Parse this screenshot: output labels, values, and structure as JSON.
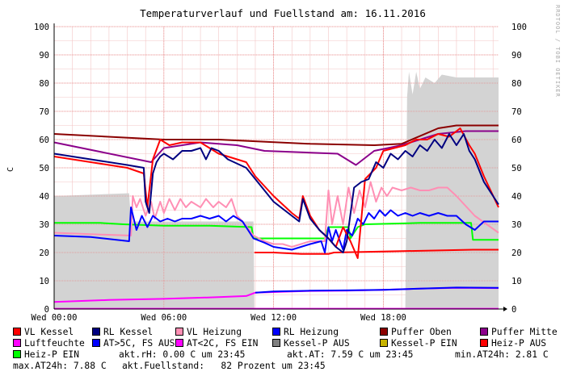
{
  "chart_data": {
    "type": "line",
    "title": "Temperaturverlauf und Fuellstand am: 16.11.2016",
    "ylabel": "C",
    "xlabel": "",
    "ylim": [
      0,
      100
    ],
    "yticks": [
      0,
      10,
      20,
      30,
      40,
      50,
      60,
      70,
      80,
      90,
      100
    ],
    "xlim": [
      0,
      24.3
    ],
    "xticks": [
      {
        "label": "Wed 00:00",
        "value": 0
      },
      {
        "label": "Wed 06:00",
        "value": 6
      },
      {
        "label": "Wed 12:00",
        "value": 12
      },
      {
        "label": "Wed 18:00",
        "value": 18
      }
    ],
    "grid": true,
    "legend_position": "bottom",
    "watermark": "RRDTOOL / TOBI OETIKER",
    "series": [
      {
        "name": "Fuellstand",
        "color": "#d3d3d3",
        "style": "area",
        "points": [
          [
            0,
            40
          ],
          [
            4.1,
            41
          ],
          [
            4.2,
            31
          ],
          [
            10.9,
            31
          ],
          [
            10.95,
            0
          ],
          [
            19.2,
            0
          ],
          [
            19.3,
            75
          ],
          [
            19.4,
            84
          ],
          [
            19.6,
            76
          ],
          [
            19.8,
            84
          ],
          [
            20,
            78
          ],
          [
            20.3,
            82
          ],
          [
            20.8,
            80
          ],
          [
            21.2,
            83
          ],
          [
            22,
            82
          ],
          [
            23,
            82
          ],
          [
            24.3,
            82
          ]
        ]
      },
      {
        "name": "Luftfeuchte",
        "color": "#ff00ff",
        "points": [
          [
            0,
            0.1
          ],
          [
            24.3,
            0.1
          ]
        ]
      },
      {
        "name": "AT<2C, FS EIN",
        "color": "#ff00ff",
        "points": [
          [
            0,
            2.5
          ],
          [
            3,
            3.2
          ],
          [
            6,
            3.6
          ],
          [
            9,
            4.2
          ],
          [
            10.5,
            4.6
          ],
          [
            11,
            5.8
          ],
          [
            12,
            6
          ],
          [
            14,
            6.4
          ],
          [
            16,
            6.5
          ],
          [
            18,
            6.8
          ],
          [
            20,
            7.2
          ],
          [
            22,
            7.5
          ],
          [
            24.3,
            7.4
          ]
        ]
      },
      {
        "name": "AT>5C, FS AUS",
        "color": "#0000ff",
        "points": [
          [
            11,
            5.8
          ],
          [
            12,
            6.2
          ],
          [
            14,
            6.5
          ],
          [
            16,
            6.6
          ],
          [
            18,
            6.8
          ],
          [
            20,
            7.2
          ],
          [
            22,
            7.6
          ],
          [
            24.3,
            7.5
          ]
        ]
      },
      {
        "name": "Puffer Oben",
        "color": "#8b0000",
        "points": [
          [
            0,
            62
          ],
          [
            6,
            60
          ],
          [
            9,
            60
          ],
          [
            14,
            58.5
          ],
          [
            17.5,
            58
          ],
          [
            19,
            58.5
          ],
          [
            21,
            64
          ],
          [
            22,
            65
          ],
          [
            24.3,
            65
          ]
        ]
      },
      {
        "name": "Puffer Mitte",
        "color": "#8b008b",
        "points": [
          [
            0,
            59
          ],
          [
            5.3,
            52
          ],
          [
            6,
            57
          ],
          [
            8,
            59
          ],
          [
            10,
            58
          ],
          [
            11.5,
            56
          ],
          [
            15.5,
            55
          ],
          [
            16.5,
            51
          ],
          [
            17.5,
            56
          ],
          [
            19,
            58
          ],
          [
            21,
            62
          ],
          [
            22.5,
            63
          ],
          [
            24.3,
            63
          ]
        ]
      },
      {
        "name": "Heiz-P EIN",
        "color": "#00ff00",
        "points": [
          [
            0,
            30.5
          ],
          [
            2.5,
            30.5
          ],
          [
            3.8,
            30
          ],
          [
            6,
            29.5
          ],
          [
            8.5,
            29.5
          ],
          [
            10.8,
            29
          ],
          [
            10.9,
            25
          ],
          [
            14.8,
            25
          ],
          [
            15,
            29
          ],
          [
            16.1,
            29
          ],
          [
            16.2,
            25
          ],
          [
            16.6,
            29
          ],
          [
            17,
            30
          ],
          [
            20,
            30.5
          ],
          [
            22.8,
            30.5
          ],
          [
            22.9,
            24.5
          ],
          [
            24.3,
            24.5
          ]
        ]
      },
      {
        "name": "Heiz-P AUS",
        "color": "#ff0000",
        "points": [
          [
            10.95,
            20
          ],
          [
            12,
            20
          ],
          [
            13.5,
            19.5
          ],
          [
            15,
            19.5
          ],
          [
            15.3,
            20
          ],
          [
            22.9,
            21
          ],
          [
            24.3,
            21
          ]
        ]
      },
      {
        "name": "VL Heizung",
        "color": "#ff8fb4",
        "points": [
          [
            0,
            27
          ],
          [
            2,
            26.5
          ],
          [
            4.2,
            26
          ],
          [
            4.3,
            40
          ],
          [
            4.5,
            36
          ],
          [
            4.7,
            39
          ],
          [
            5,
            33
          ],
          [
            5.3,
            38
          ],
          [
            5.5,
            32
          ],
          [
            5.8,
            38
          ],
          [
            6,
            34
          ],
          [
            6.3,
            39
          ],
          [
            6.6,
            35
          ],
          [
            6.9,
            39
          ],
          [
            7.2,
            36
          ],
          [
            7.5,
            38
          ],
          [
            8,
            36
          ],
          [
            8.3,
            39
          ],
          [
            8.7,
            36
          ],
          [
            9,
            38
          ],
          [
            9.4,
            36
          ],
          [
            9.7,
            39
          ],
          [
            10,
            33
          ],
          [
            10.3,
            31
          ],
          [
            10.9,
            26
          ],
          [
            11.5,
            24
          ],
          [
            12,
            23
          ],
          [
            12.5,
            23
          ],
          [
            13,
            22
          ],
          [
            14,
            24
          ],
          [
            14.8,
            24
          ],
          [
            15,
            42
          ],
          [
            15.2,
            30
          ],
          [
            15.5,
            40
          ],
          [
            15.8,
            30
          ],
          [
            16.1,
            43
          ],
          [
            16.4,
            34
          ],
          [
            16.7,
            42
          ],
          [
            17,
            36
          ],
          [
            17.3,
            45
          ],
          [
            17.6,
            38
          ],
          [
            17.9,
            43
          ],
          [
            18.2,
            40
          ],
          [
            18.5,
            43
          ],
          [
            19,
            42
          ],
          [
            19.5,
            43
          ],
          [
            20,
            42
          ],
          [
            20.5,
            42
          ],
          [
            21,
            43
          ],
          [
            21.5,
            43
          ],
          [
            22,
            40
          ],
          [
            23,
            33
          ],
          [
            24.3,
            27
          ]
        ]
      },
      {
        "name": "RL Heizung",
        "color": "#0000ff",
        "points": [
          [
            0,
            26
          ],
          [
            2,
            25.5
          ],
          [
            4.1,
            24
          ],
          [
            4.2,
            36
          ],
          [
            4.5,
            28
          ],
          [
            4.8,
            33
          ],
          [
            5.1,
            29
          ],
          [
            5.4,
            33
          ],
          [
            5.8,
            31
          ],
          [
            6.2,
            32
          ],
          [
            6.6,
            31
          ],
          [
            7,
            32
          ],
          [
            7.5,
            32
          ],
          [
            8,
            33
          ],
          [
            8.5,
            32
          ],
          [
            9,
            33
          ],
          [
            9.4,
            31
          ],
          [
            9.8,
            33
          ],
          [
            10.3,
            31
          ],
          [
            10.9,
            25
          ],
          [
            11.5,
            23.5
          ],
          [
            12,
            22
          ],
          [
            13,
            21
          ],
          [
            14,
            23
          ],
          [
            14.6,
            24
          ],
          [
            14.8,
            20
          ],
          [
            15,
            29
          ],
          [
            15.2,
            24
          ],
          [
            15.4,
            28
          ],
          [
            15.8,
            21
          ],
          [
            16,
            28
          ],
          [
            16.3,
            26
          ],
          [
            16.6,
            32
          ],
          [
            16.9,
            30
          ],
          [
            17.2,
            34
          ],
          [
            17.5,
            32
          ],
          [
            17.8,
            35
          ],
          [
            18.1,
            33
          ],
          [
            18.4,
            35
          ],
          [
            18.8,
            33
          ],
          [
            19.2,
            34
          ],
          [
            19.6,
            33
          ],
          [
            20,
            34
          ],
          [
            20.5,
            33
          ],
          [
            21,
            34
          ],
          [
            21.5,
            33
          ],
          [
            22,
            33
          ],
          [
            22.5,
            30
          ],
          [
            23,
            28
          ],
          [
            23.5,
            31
          ],
          [
            24.3,
            31
          ]
        ]
      },
      {
        "name": "VL Kessel",
        "color": "#ff0000",
        "points": [
          [
            0,
            54
          ],
          [
            2,
            52
          ],
          [
            4,
            50
          ],
          [
            4.9,
            48
          ],
          [
            5.1,
            36
          ],
          [
            5.4,
            53
          ],
          [
            5.8,
            60
          ],
          [
            6.3,
            58
          ],
          [
            7,
            59
          ],
          [
            8,
            59
          ],
          [
            8.5,
            57
          ],
          [
            9,
            55
          ],
          [
            10.5,
            52
          ],
          [
            11,
            47
          ],
          [
            12,
            40
          ],
          [
            13,
            34
          ],
          [
            13.4,
            32
          ],
          [
            13.6,
            40
          ],
          [
            14,
            33
          ],
          [
            14.5,
            28
          ],
          [
            15,
            25
          ],
          [
            15.4,
            22
          ],
          [
            15.8,
            29
          ],
          [
            16.2,
            24
          ],
          [
            16.6,
            18
          ],
          [
            17,
            46
          ],
          [
            17.6,
            50
          ],
          [
            18,
            56
          ],
          [
            18.6,
            57
          ],
          [
            19.2,
            58
          ],
          [
            19.8,
            60
          ],
          [
            20.4,
            60
          ],
          [
            21,
            62
          ],
          [
            21.6,
            61
          ],
          [
            22.2,
            64
          ],
          [
            22.7,
            58
          ],
          [
            23,
            55
          ],
          [
            23.5,
            47
          ],
          [
            24.3,
            36
          ]
        ]
      },
      {
        "name": "RL Kessel",
        "color": "#000080",
        "points": [
          [
            0,
            55
          ],
          [
            2,
            53
          ],
          [
            4,
            51
          ],
          [
            4.9,
            50
          ],
          [
            5,
            38
          ],
          [
            5.2,
            34
          ],
          [
            5.4,
            48
          ],
          [
            5.6,
            52
          ],
          [
            5.8,
            54
          ],
          [
            6,
            55
          ],
          [
            6.5,
            53
          ],
          [
            7,
            56
          ],
          [
            7.5,
            56
          ],
          [
            8,
            57
          ],
          [
            8.3,
            53
          ],
          [
            8.6,
            57
          ],
          [
            9,
            56
          ],
          [
            9.5,
            53
          ],
          [
            10.5,
            50
          ],
          [
            11,
            46
          ],
          [
            12,
            38
          ],
          [
            13,
            33
          ],
          [
            13.4,
            31
          ],
          [
            13.6,
            39
          ],
          [
            14,
            32
          ],
          [
            14.5,
            28
          ],
          [
            15,
            25
          ],
          [
            15.4,
            22
          ],
          [
            15.8,
            20
          ],
          [
            16,
            24
          ],
          [
            16.4,
            43
          ],
          [
            16.8,
            45
          ],
          [
            17.2,
            46
          ],
          [
            17.6,
            52
          ],
          [
            18,
            50
          ],
          [
            18.4,
            55
          ],
          [
            18.8,
            53
          ],
          [
            19.2,
            56
          ],
          [
            19.6,
            54
          ],
          [
            20,
            58
          ],
          [
            20.4,
            56
          ],
          [
            20.8,
            60
          ],
          [
            21.2,
            57
          ],
          [
            21.6,
            62
          ],
          [
            22,
            58
          ],
          [
            22.4,
            62
          ],
          [
            22.7,
            56
          ],
          [
            23,
            53
          ],
          [
            23.5,
            45
          ],
          [
            24.3,
            37
          ]
        ]
      }
    ]
  },
  "legend": {
    "row1": [
      {
        "label": "VL Kessel",
        "color": "#ff0000"
      },
      {
        "label": "RL Kessel",
        "color": "#000080"
      },
      {
        "label": "VL Heizung",
        "color": "#ff8fb4"
      },
      {
        "label": "RL Heizung",
        "color": "#0000ff"
      },
      {
        "label": "Puffer Oben",
        "color": "#8b0000"
      },
      {
        "label": "Puffer Mitte",
        "color": "#8b008b"
      }
    ],
    "row2": [
      {
        "label": "Luftfeuchte",
        "color": "#ff00ff"
      },
      {
        "label": "AT>5C, FS AUS",
        "color": "#0000ff"
      },
      {
        "label": "AT<2C, FS EIN",
        "color": "#ff00ff"
      },
      {
        "label": "Kessel-P AUS",
        "color": "#808080"
      },
      {
        "label": "Kessel-P EIN",
        "color": "#c8b400"
      },
      {
        "label": "Heiz-P AUS",
        "color": "#ff0000"
      }
    ],
    "row3": [
      {
        "label": "Heiz-P EIN",
        "color": "#00ff00"
      }
    ]
  },
  "stats": {
    "akt_rh": "akt.rH: 0.00 C um 23:45",
    "akt_at": "akt.AT: 7.59 C um 23:45",
    "min_at": "min.AT24h: 2.81 C",
    "max_at": "max.AT24h: 7.88 C",
    "fuellstand": "akt.Fuellstand:   82 Prozent um 23:45"
  }
}
